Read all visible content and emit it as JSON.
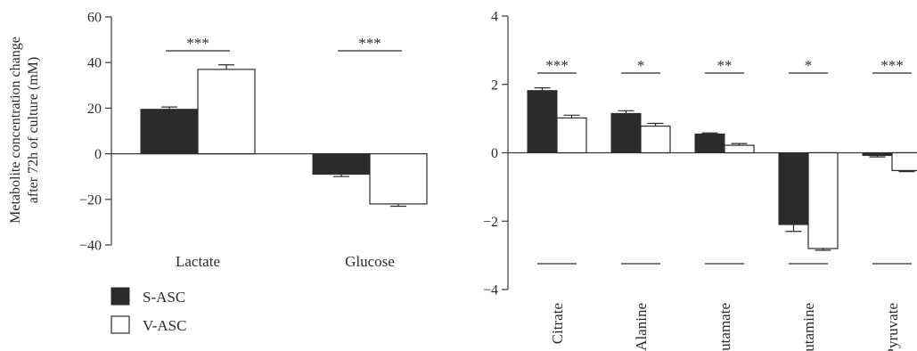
{
  "legend": {
    "items": [
      {
        "label": "S-ASC",
        "color": "#2b2b2b"
      },
      {
        "label": "V-ASC",
        "color": "#ffffff"
      }
    ]
  },
  "chart_data": [
    {
      "type": "bar",
      "ylabel_lines": [
        "Metabolite concentration change",
        "after 72h of culture (mM)"
      ],
      "categories": [
        "Lactate",
        "Glucose"
      ],
      "series": [
        {
          "name": "S-ASC",
          "values": [
            19.5,
            -9.0
          ],
          "errors": [
            1.0,
            1.0
          ]
        },
        {
          "name": "V-ASC",
          "values": [
            37.0,
            -22.0
          ],
          "errors": [
            2.0,
            1.0
          ]
        }
      ],
      "significance": [
        "***",
        "***"
      ],
      "ylim": [
        -40,
        60
      ],
      "yticks": [
        -40,
        -20,
        0,
        20,
        40,
        60
      ],
      "ytick_labels": [
        "−40",
        "−20",
        "0",
        "20",
        "40",
        "60"
      ],
      "legend_position": "bottom-left"
    },
    {
      "type": "bar",
      "categories": [
        "Citrate",
        "Alanine",
        "Glutamate",
        "Glutamine",
        "Pyruvate"
      ],
      "series": [
        {
          "name": "S-ASC",
          "values": [
            1.82,
            1.15,
            0.55,
            -2.1,
            -0.08
          ],
          "errors": [
            0.08,
            0.08,
            0.03,
            0.2,
            0.04
          ]
        },
        {
          "name": "V-ASC",
          "values": [
            1.02,
            0.78,
            0.22,
            -2.8,
            -0.52
          ],
          "errors": [
            0.08,
            0.08,
            0.05,
            0.05,
            0.03
          ]
        }
      ],
      "significance": [
        "***",
        "*",
        "**",
        "*",
        "***"
      ],
      "ylim": [
        -4,
        4
      ],
      "yticks": [
        -4,
        -2,
        0,
        2,
        4
      ],
      "ytick_labels": [
        "−4",
        "−2",
        "0",
        "2",
        "4"
      ]
    }
  ]
}
